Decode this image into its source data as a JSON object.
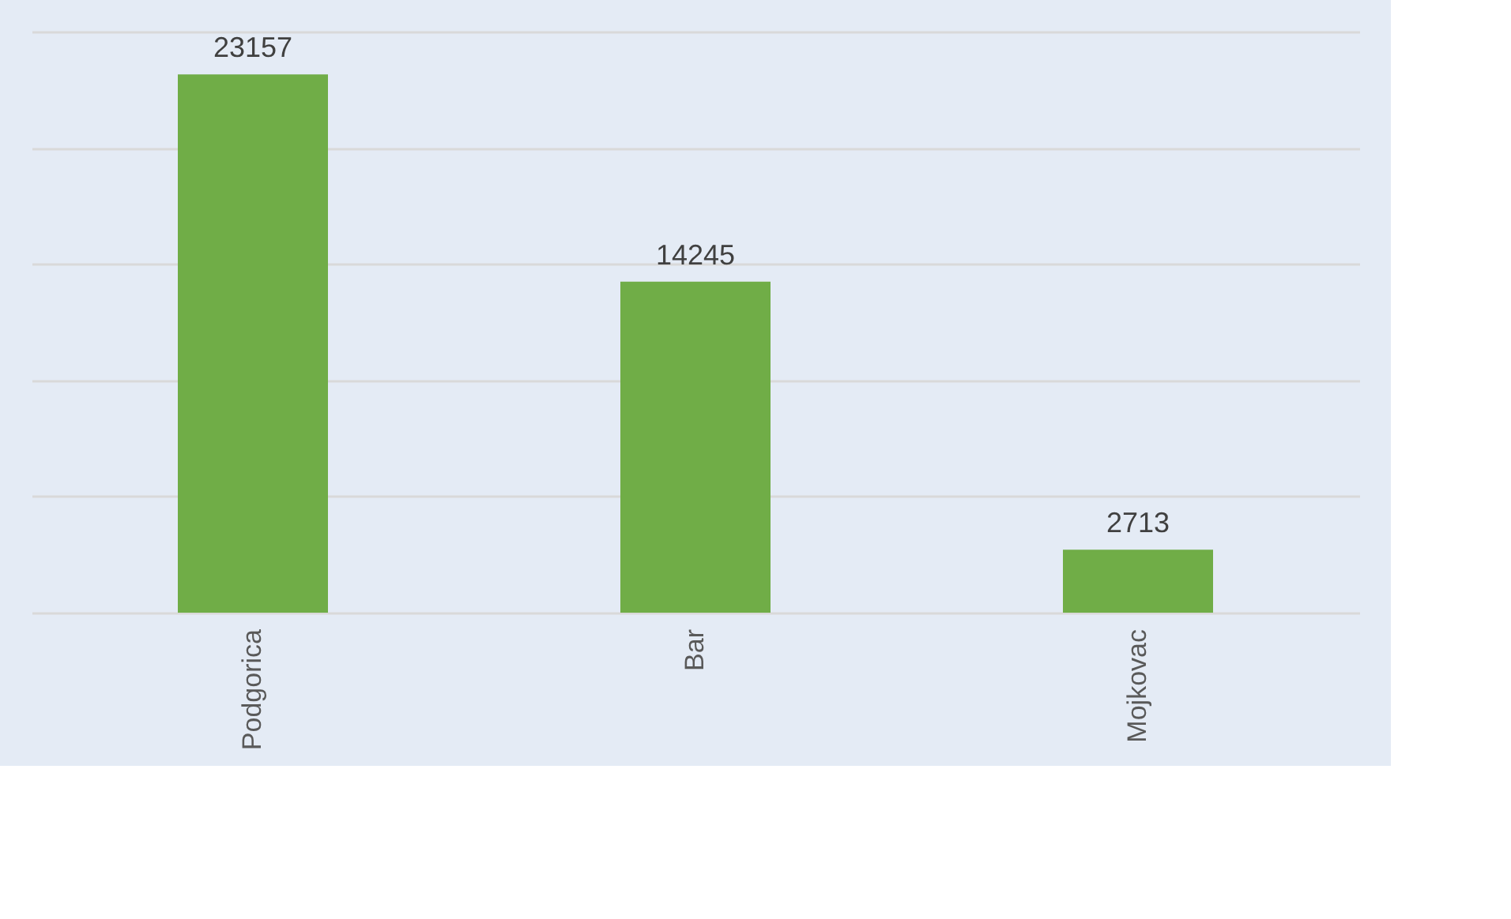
{
  "chart_data": {
    "type": "bar",
    "categories": [
      "Podgorica",
      "Bar",
      "Mojkovac"
    ],
    "values": [
      23157,
      14245,
      2713
    ],
    "color": "#70ad47",
    "data_labels": true,
    "ylim": [
      0,
      25000
    ],
    "yticks": [
      {
        "value": 0,
        "label": null
      },
      {
        "value": 5000,
        "label": null
      },
      {
        "value": 10000,
        "label": null
      },
      {
        "value": 15000,
        "label": null
      },
      {
        "value": 20000,
        "label": null
      },
      {
        "value": 25000,
        "label": null
      }
    ],
    "grid": "y",
    "tick_labels": "x"
  }
}
